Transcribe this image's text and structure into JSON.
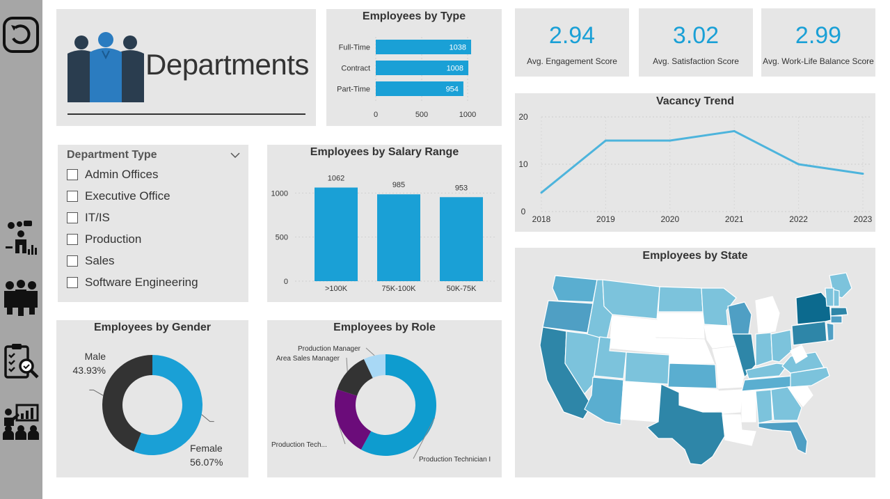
{
  "header": {
    "title": "Departments"
  },
  "sidebar": {
    "icons": [
      "back-icon",
      "analytics-person-icon",
      "team-icon",
      "clipboard-search-icon",
      "presentation-team-icon"
    ]
  },
  "kpis": [
    {
      "value": "2.94",
      "label": "Avg. Engagement Score"
    },
    {
      "value": "3.02",
      "label": "Avg. Satisfaction Score"
    },
    {
      "value": "2.99",
      "label": "Avg. Work-Life Balance Score"
    }
  ],
  "slicer": {
    "title": "Department Type",
    "items": [
      "Admin Offices",
      "Executive Office",
      "IT/IS",
      "Production",
      "Sales",
      "Software Engineering"
    ]
  },
  "colors": {
    "accent": "#1aa0d6",
    "dark": "#333333",
    "purple": "#6b0c7a",
    "light_blue": "#a8d8f5",
    "card": "#e6e6e6",
    "sidebar": "#a6a6a6"
  },
  "charts": {
    "type_chart": {
      "title": "Employees by Type",
      "chart_data": {
        "type": "bar",
        "orientation": "horizontal",
        "categories": [
          "Full-Time",
          "Contract",
          "Part-Time"
        ],
        "values": [
          1038,
          1008,
          954
        ],
        "xlim": [
          0,
          1000
        ],
        "ticks": [
          "0",
          "500",
          "1000"
        ]
      }
    },
    "salary_chart": {
      "title": "Employees by Salary Range",
      "chart_data": {
        "type": "bar",
        "categories": [
          ">100K",
          "75K-100K",
          "50K-75K"
        ],
        "values": [
          1062,
          985,
          953
        ],
        "ylim": [
          0,
          1200
        ],
        "ticks": [
          "0",
          "500",
          "1000"
        ]
      }
    },
    "vacancy_chart": {
      "title": "Vacancy Trend",
      "chart_data": {
        "type": "line",
        "x": [
          "2018",
          "2019",
          "2020",
          "2021",
          "2022",
          "2023"
        ],
        "values": [
          4,
          15,
          15,
          17,
          10,
          8
        ],
        "ylim": [
          0,
          20
        ],
        "ticks": [
          "0",
          "10",
          "20"
        ]
      }
    },
    "gender_chart": {
      "title": "Employees by Gender",
      "chart_data": {
        "type": "pie",
        "donut": true,
        "labels": [
          "Female",
          "Male"
        ],
        "values": [
          56.07,
          43.93
        ],
        "display": [
          "56.07%",
          "43.93%"
        ]
      }
    },
    "role_chart": {
      "title": "Employees by Role",
      "chart_data": {
        "type": "pie",
        "donut": true,
        "labels": [
          "Production Technician I",
          "Production Tech...",
          "Area Sales Manager",
          "Production Manager"
        ],
        "values": [
          58,
          22,
          13,
          7
        ]
      }
    },
    "state_chart": {
      "title": "Employees by State"
    }
  }
}
